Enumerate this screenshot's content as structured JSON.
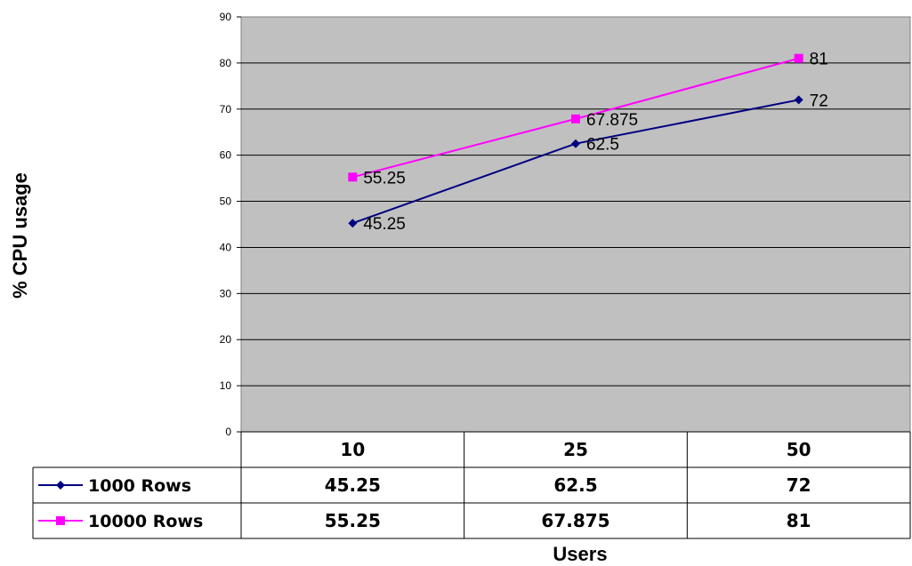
{
  "chart_data": {
    "type": "line",
    "categories": [
      "10",
      "25",
      "50"
    ],
    "series": [
      {
        "name": "1000 Rows",
        "values": [
          45.25,
          62.5,
          72
        ],
        "labels": [
          "45.25",
          "62.5",
          "72"
        ],
        "color": "#000080",
        "marker": "diamond"
      },
      {
        "name": "10000 Rows",
        "values": [
          55.25,
          67.875,
          81
        ],
        "labels": [
          "55.25",
          "67.875",
          "81"
        ],
        "color": "#FF00FF",
        "marker": "square"
      }
    ],
    "xlabel": "Users",
    "ylabel": "% CPU usage",
    "ylim": [
      0,
      90
    ],
    "yticks": [
      "0",
      "10",
      "20",
      "30",
      "40",
      "50",
      "60",
      "70",
      "80",
      "90"
    ],
    "grid": true,
    "plot_background": "#C0C0C0",
    "legend": "data-table-below-plot"
  }
}
